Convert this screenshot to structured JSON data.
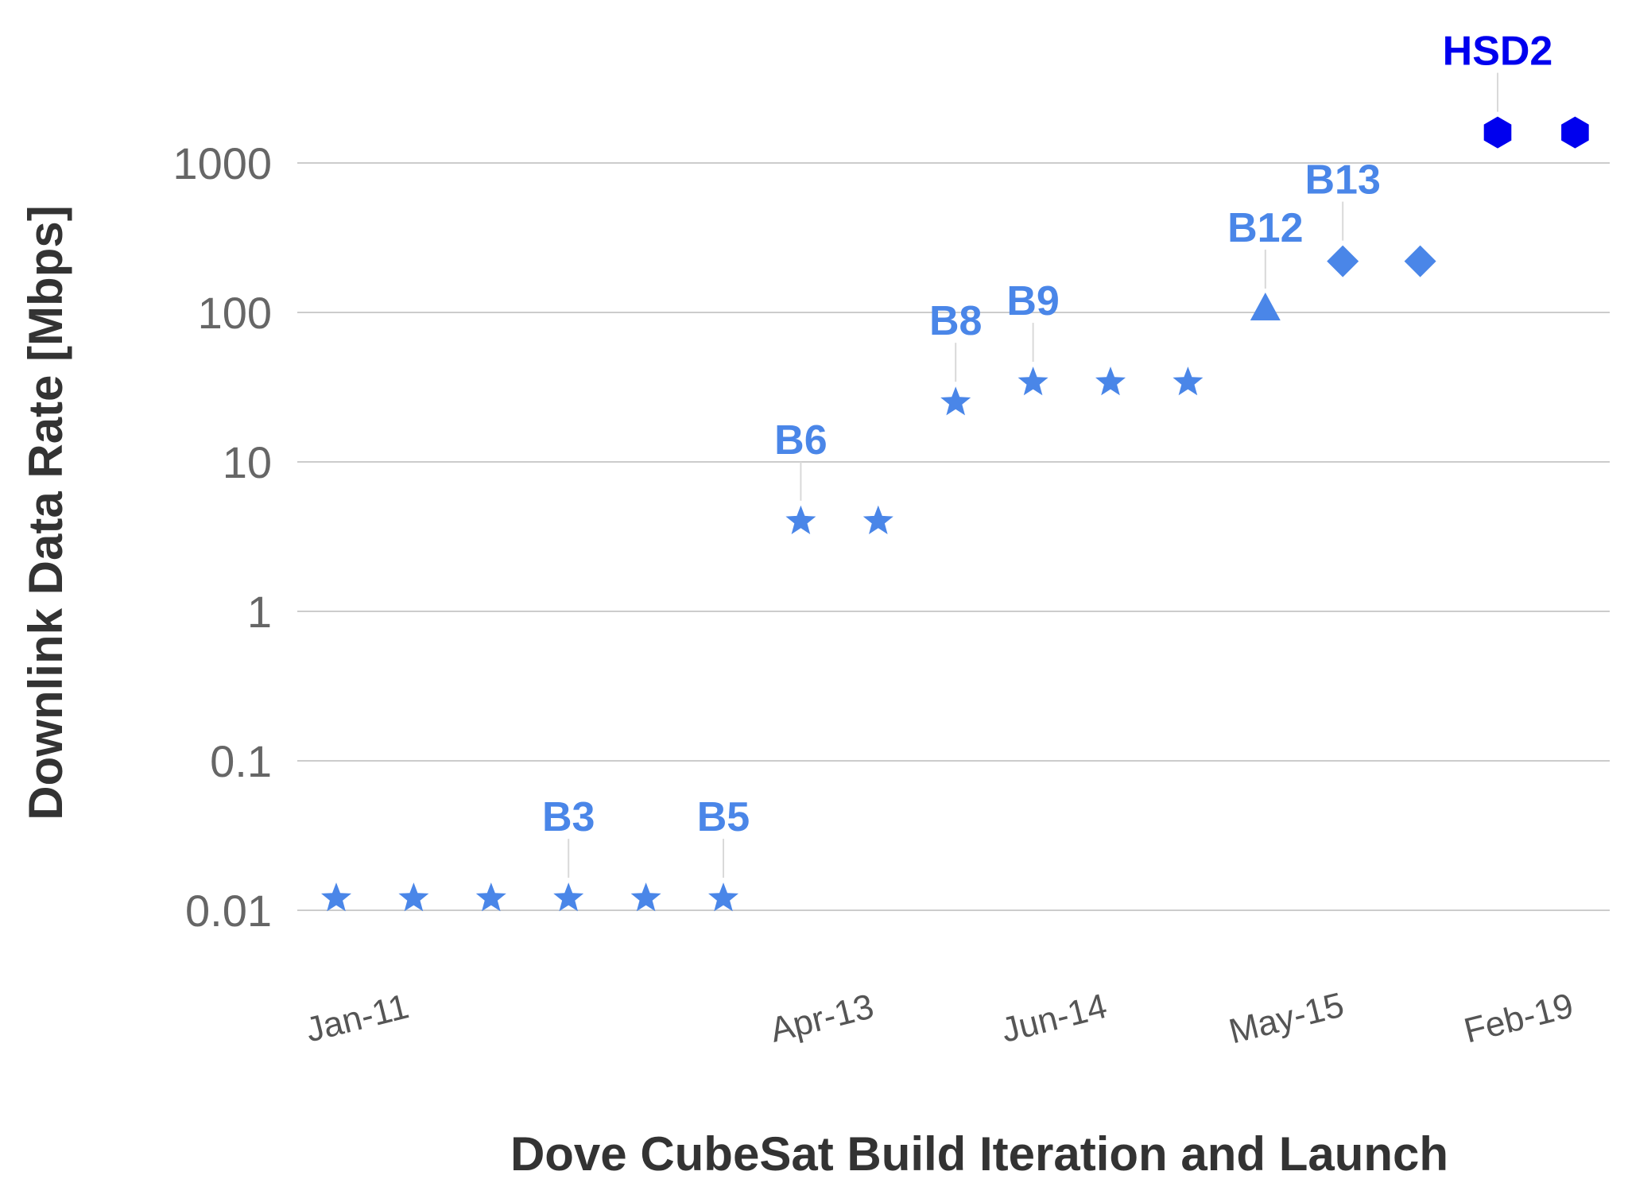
{
  "chart_data": {
    "type": "scatter",
    "title": "",
    "xlabel": "Dove CubeSat Build Iteration and Launch",
    "ylabel": "Downlink Data Rate [Mbps]",
    "y_scale": "log",
    "ylim": [
      0.01,
      1000
    ],
    "y_ticks": [
      "1000",
      "100",
      "10",
      "1",
      "0.1",
      "0.01"
    ],
    "y_tick_values": [
      1000,
      100,
      10,
      1,
      0.1,
      0.01
    ],
    "grid": true,
    "legend": "none",
    "x_categories": 17,
    "x_tick_labels": [
      {
        "category": 0,
        "label": "Jan-11"
      },
      {
        "category": 6,
        "label": "Apr-13"
      },
      {
        "category": 9,
        "label": "Jun-14"
      },
      {
        "category": 12,
        "label": "May-15"
      },
      {
        "category": 15,
        "label": "Feb-19"
      }
    ],
    "points": [
      {
        "category": 0,
        "value": 0.012,
        "marker": "star",
        "color": "#4a86e8",
        "label": ""
      },
      {
        "category": 1,
        "value": 0.012,
        "marker": "star",
        "color": "#4a86e8",
        "label": ""
      },
      {
        "category": 2,
        "value": 0.012,
        "marker": "star",
        "color": "#4a86e8",
        "label": ""
      },
      {
        "category": 3,
        "value": 0.012,
        "marker": "star",
        "color": "#4a86e8",
        "label": "B3"
      },
      {
        "category": 4,
        "value": 0.012,
        "marker": "star",
        "color": "#4a86e8",
        "label": ""
      },
      {
        "category": 5,
        "value": 0.012,
        "marker": "star",
        "color": "#4a86e8",
        "label": "B5"
      },
      {
        "category": 6,
        "value": 4,
        "marker": "star",
        "color": "#4a86e8",
        "label": "B6"
      },
      {
        "category": 7,
        "value": 4,
        "marker": "star",
        "color": "#4a86e8",
        "label": ""
      },
      {
        "category": 8,
        "value": 25,
        "marker": "star",
        "color": "#4a86e8",
        "label": "B8"
      },
      {
        "category": 9,
        "value": 34,
        "marker": "star",
        "color": "#4a86e8",
        "label": "B9"
      },
      {
        "category": 10,
        "value": 34,
        "marker": "star",
        "color": "#4a86e8",
        "label": ""
      },
      {
        "category": 11,
        "value": 34,
        "marker": "star",
        "color": "#4a86e8",
        "label": ""
      },
      {
        "category": 12,
        "value": 105,
        "marker": "triangle",
        "color": "#4a86e8",
        "label": "B12"
      },
      {
        "category": 13,
        "value": 220,
        "marker": "diamond",
        "color": "#4a86e8",
        "label": "B13"
      },
      {
        "category": 14,
        "value": 220,
        "marker": "diamond",
        "color": "#4a86e8",
        "label": ""
      },
      {
        "category": 15,
        "value": 1600,
        "marker": "hexagon",
        "color": "#0000ee",
        "label": "HSD2"
      },
      {
        "category": 16,
        "value": 1600,
        "marker": "hexagon",
        "color": "#0000ee",
        "label": ""
      }
    ],
    "colors": {
      "star_series": "#4a86e8",
      "hsd2_series": "#0000ee",
      "gridline": "#cccccc"
    }
  }
}
